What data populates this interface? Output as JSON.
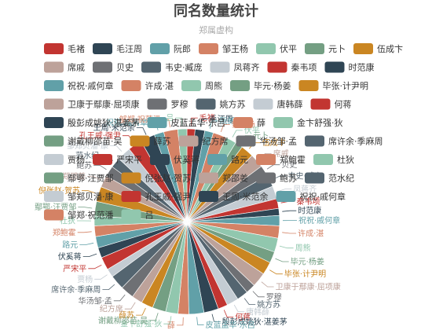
{
  "chart_data": {
    "type": "pie",
    "title": "同名数量统计",
    "subtitle": "郑属虚构",
    "slices": [
      {
        "name": "毛褚",
        "value": 15,
        "color": "#c23531"
      },
      {
        "name": "毛汪周",
        "value": 18,
        "color": "#2f4554"
      },
      {
        "name": "阮郎",
        "value": 16,
        "color": "#61a0a8"
      },
      {
        "name": "邹王杨",
        "value": 25,
        "color": "#d48265"
      },
      {
        "name": "伏平",
        "value": 20,
        "color": "#91c7ae"
      },
      {
        "name": "元卜",
        "value": 14,
        "color": "#749f83"
      },
      {
        "name": "伍成卞",
        "value": 24,
        "color": "#ca8622"
      },
      {
        "name": "席戚",
        "value": 26,
        "color": "#bda29a"
      },
      {
        "name": "贝史",
        "value": 20,
        "color": "#6e7074"
      },
      {
        "name": "韦史·臧庞",
        "value": 22,
        "color": "#546570"
      },
      {
        "name": "凤蒋齐",
        "value": 24,
        "color": "#c4ccd3"
      },
      {
        "name": "秦韦项",
        "value": 18,
        "color": "#c23531"
      },
      {
        "name": "时范康",
        "value": 13,
        "color": "#2f4554"
      },
      {
        "name": "祝祝·戚何章",
        "value": 19,
        "color": "#61a0a8"
      },
      {
        "name": "许成·湛",
        "value": 23,
        "color": "#d48265"
      },
      {
        "name": "周熊",
        "value": 26,
        "color": "#91c7ae"
      },
      {
        "name": "毕元·杨姜",
        "value": 21,
        "color": "#749f83"
      },
      {
        "name": "毕张·计尹明",
        "value": 24,
        "color": "#ca8622"
      },
      {
        "name": "卫康于鄢康·屈项康",
        "value": 27,
        "color": "#bda29a"
      },
      {
        "name": "罗穆",
        "value": 18,
        "color": "#6e7074"
      },
      {
        "name": "姚方苏",
        "value": 21,
        "color": "#546570"
      },
      {
        "name": "唐韩薛",
        "value": 22,
        "color": "#c4ccd3"
      },
      {
        "name": "何蒋",
        "value": 18,
        "color": "#c23531"
      },
      {
        "name": "殷彭成姚狄·湛姜茅",
        "value": 27,
        "color": "#2f4554"
      },
      {
        "name": "皮蓝孟华·乐吕",
        "value": 28,
        "color": "#61a0a8"
      },
      {
        "name": "薛",
        "value": 20,
        "color": "#d48265"
      },
      {
        "name": "金卞舒强·狄",
        "value": 23,
        "color": "#91c7ae"
      },
      {
        "name": "谢戴柳邵苗·吴",
        "value": 25,
        "color": "#749f83"
      },
      {
        "name": "薛苏",
        "value": 22,
        "color": "#ca8622"
      },
      {
        "name": "纪方席",
        "value": 20,
        "color": "#bda29a"
      },
      {
        "name": "华汤邹·孟",
        "value": 25,
        "color": "#6e7074"
      },
      {
        "name": "席许余·季麻周",
        "value": 27,
        "color": "#546570"
      },
      {
        "name": "贾杨",
        "value": 16,
        "color": "#c4ccd3"
      },
      {
        "name": "严宋平",
        "value": 24,
        "color": "#c23531"
      },
      {
        "name": "伏奚蒋",
        "value": 19,
        "color": "#2f4554"
      },
      {
        "name": "路元",
        "value": 21,
        "color": "#61a0a8"
      },
      {
        "name": "郑鲍霍",
        "value": 20,
        "color": "#d48265"
      },
      {
        "name": "杜狄",
        "value": 18,
        "color": "#91c7ae"
      },
      {
        "name": "鄢鄂·汪贾邹",
        "value": 27,
        "color": "#749f83"
      },
      {
        "name": "倪张赵·贺苏",
        "value": 28,
        "color": "#ca8622"
      },
      {
        "name": "郑邵姜",
        "value": 22,
        "color": "#bda29a"
      },
      {
        "name": "鲍苏",
        "value": 20,
        "color": "#6e7074"
      },
      {
        "name": "范水纪",
        "value": 19,
        "color": "#546570"
      },
      {
        "name": "邹郑贝潘·康",
        "value": 26,
        "color": "#c4ccd3"
      },
      {
        "name": "孔王戚·强尹",
        "value": 26,
        "color": "#c23531"
      },
      {
        "name": "王周·米范余",
        "value": 27,
        "color": "#2f4554"
      },
      {
        "name": "祝祝·戚何章",
        "value": 18,
        "color": "#61a0a8"
      },
      {
        "name": "邹郑·祝范潘",
        "value": 26,
        "color": "#d48265"
      },
      {
        "name": "吕",
        "value": 17,
        "color": "#91c7ae"
      }
    ]
  }
}
